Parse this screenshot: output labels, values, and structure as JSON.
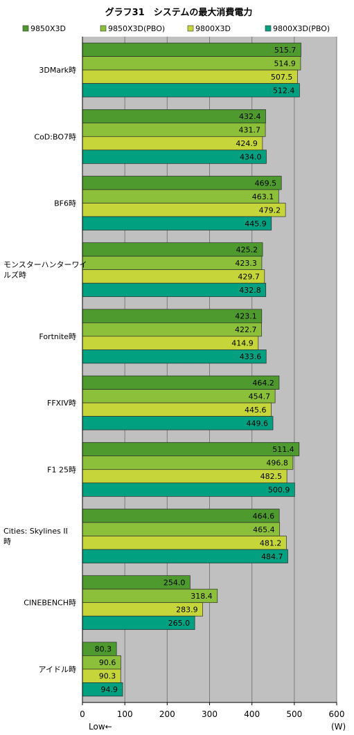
{
  "chart_data": {
    "type": "bar",
    "orientation": "horizontal",
    "title": "グラフ31　システムの最大消費電力",
    "unit_label": "(W)",
    "direction_note": "Low←",
    "xlim": [
      0,
      600
    ],
    "xticks": [
      0,
      100,
      200,
      300,
      400,
      500,
      600
    ],
    "grid": true,
    "legend_position": "top",
    "categories": [
      "3DMark時",
      "CoD:BO7時",
      "BF6時",
      "モンスターハンターワイルズ時",
      "Fortnite時",
      "FFXIV時",
      "F1 25時",
      "Cities: Skylines II時",
      "CINEBENCH時",
      "アイドル時"
    ],
    "category_lines": [
      [
        "3DMark時"
      ],
      [
        "CoD:BO7時"
      ],
      [
        "BF6時"
      ],
      [
        "モンスターハンターワイ",
        "ルズ時"
      ],
      [
        "Fortnite時"
      ],
      [
        "FFXIV時"
      ],
      [
        "F1 25時"
      ],
      [
        "Cities: Skylines II",
        "時"
      ],
      [
        "CINEBENCH時"
      ],
      [
        "アイドル時"
      ]
    ],
    "series": [
      {
        "name": "9850X3D",
        "color": "#4e9a2e",
        "values": [
          515.7,
          432.4,
          469.5,
          425.2,
          423.1,
          464.2,
          511.4,
          464.6,
          254.0,
          80.3
        ]
      },
      {
        "name": "9850X3D(PBO)",
        "color": "#8dc03a",
        "values": [
          514.9,
          431.7,
          463.1,
          423.3,
          422.7,
          454.7,
          496.8,
          465.4,
          318.4,
          90.6
        ]
      },
      {
        "name": "9800X3D",
        "color": "#c6d63a",
        "values": [
          507.5,
          424.9,
          479.2,
          429.7,
          414.9,
          445.6,
          482.5,
          481.2,
          283.9,
          90.3
        ]
      },
      {
        "name": "9800X3D(PBO)",
        "color": "#00a080",
        "values": [
          512.4,
          434.0,
          445.9,
          432.8,
          433.6,
          449.6,
          500.9,
          484.7,
          265.0,
          94.9
        ]
      }
    ],
    "value_labels": [
      [
        "515.7",
        "432.4",
        "469.5",
        "425.2",
        "423.1",
        "464.2",
        "511.4",
        "464.6",
        "254.0",
        "80.3"
      ],
      [
        "514.9",
        "431.7",
        "463.1",
        "423.3",
        "422.7",
        "454.7",
        "496.8",
        "465.4",
        "318.4",
        "90.6"
      ],
      [
        "507.5",
        "424.9",
        "479.2",
        "429.7",
        "414.9",
        "445.6",
        "482.5",
        "481.2",
        "283.9",
        "90.3"
      ],
      [
        "512.4",
        "434.0",
        "445.9",
        "432.8",
        "433.6",
        "449.6",
        "500.9",
        "484.7",
        "265.0",
        "94.9"
      ]
    ],
    "colors": {
      "plot_background": "#c0c0c0",
      "gridline": "#7a7a7a",
      "bar_border": "#2a2a2a"
    }
  }
}
